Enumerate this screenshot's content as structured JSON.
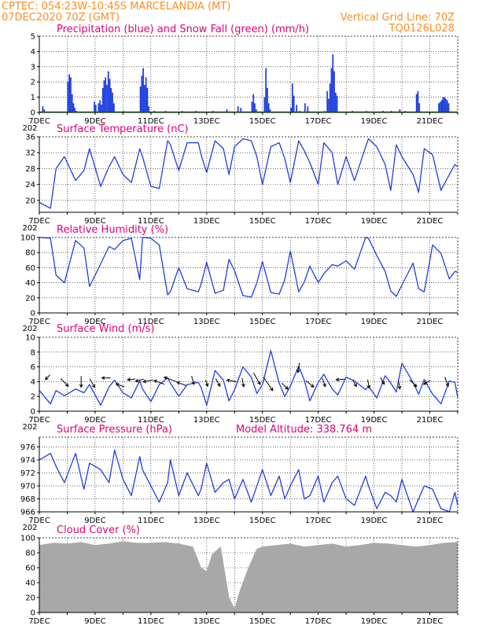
{
  "header": {
    "station": "CPTEC:   054:23W-10:45S   MARCELANDIA (MT)",
    "run": "07DEC2020 70Z (GMT)",
    "grid_note": "Vertical Grid Line: 70Z",
    "code": "TQ0126L028"
  },
  "x_axis": {
    "date_labels": [
      "7DEC",
      "9DEC",
      "11DEC",
      "13DEC",
      "15DEC",
      "17DEC",
      "19DEC",
      "21DEC"
    ],
    "date_days": [
      0,
      2,
      4,
      6,
      8,
      10,
      12,
      14
    ],
    "start_label_prefix": "202",
    "span_days": 15
  },
  "colors": {
    "header": "#ff8c1a",
    "panel_title": "#e0007a",
    "line": "#1f3fe0",
    "precip": "#1f3fe0",
    "snow": "#00a000",
    "cloud": "#a8a8a8",
    "arrow": "#000000"
  },
  "chart_data": [
    {
      "id": "precip",
      "type": "bar",
      "title": "Precipitation (blue) and Snow Fall (green) (mm/h)",
      "ylim": [
        0,
        5
      ],
      "yticks": [
        0,
        1,
        2,
        3,
        4,
        5
      ],
      "series": [
        {
          "name": "Precipitation",
          "x": [
            0.1,
            0.15,
            1.0,
            1.05,
            1.1,
            1.15,
            1.2,
            1.25,
            1.3,
            1.95,
            2.0,
            2.1,
            2.15,
            2.2,
            2.25,
            2.3,
            2.35,
            2.4,
            2.45,
            2.5,
            2.55,
            2.6,
            2.65,
            3.0,
            3.6,
            3.65,
            3.7,
            3.75,
            3.8,
            3.85,
            3.9,
            4.1,
            4.5,
            5.1,
            5.6,
            6.2,
            6.7,
            7.1,
            7.2,
            7.6,
            7.65,
            7.7,
            7.75,
            8.05,
            8.1,
            8.15,
            8.2,
            8.25,
            9.0,
            9.05,
            9.1,
            9.2,
            9.3,
            9.5,
            9.6,
            10.2,
            10.3,
            10.35,
            10.4,
            10.45,
            10.5,
            10.55,
            10.6,
            10.65,
            11.2,
            11.7,
            12.3,
            12.6,
            12.9,
            13.1,
            13.5,
            13.55,
            13.6,
            14.3,
            14.35,
            14.4,
            14.45,
            14.5,
            14.55,
            14.6,
            14.65
          ],
          "values": [
            0.4,
            0.2,
            2.0,
            2.5,
            2.3,
            1.2,
            0.6,
            0.3,
            0.1,
            0.7,
            0.5,
            0.6,
            0.8,
            0.5,
            1.6,
            2.1,
            2.3,
            1.8,
            2.7,
            2.2,
            1.6,
            1.3,
            0.6,
            0.1,
            1.7,
            2.4,
            2.9,
            1.8,
            2.3,
            1.6,
            0.4,
            0.1,
            0.1,
            0.1,
            0.1,
            0.1,
            0.2,
            0.4,
            0.3,
            0.7,
            1.2,
            0.6,
            0.2,
            1.0,
            2.9,
            1.6,
            0.6,
            0.2,
            0.3,
            1.9,
            1.1,
            0.5,
            0.1,
            0.6,
            0.4,
            0.1,
            1.4,
            0.9,
            1.9,
            2.9,
            3.8,
            2.7,
            1.3,
            1.1,
            0.1,
            0.1,
            0.1,
            0.1,
            0.2,
            0.1,
            1.2,
            1.4,
            0.6,
            0.6,
            0.7,
            0.8,
            1.0,
            1.0,
            0.9,
            0.8,
            0.6
          ]
        },
        {
          "name": "Snow Fall",
          "x": [],
          "values": []
        }
      ]
    },
    {
      "id": "temperature",
      "type": "line",
      "title": "Surface Temperature (nC)",
      "ylim": [
        17,
        36
      ],
      "yticks": [
        20,
        24,
        28,
        32,
        36
      ],
      "x": [
        0.0,
        0.4,
        0.6,
        0.9,
        1.3,
        1.6,
        1.8,
        2.2,
        2.5,
        2.7,
        3.0,
        3.3,
        3.6,
        3.7,
        4.0,
        4.3,
        4.6,
        4.7,
        5.0,
        5.3,
        5.7,
        5.8,
        6.0,
        6.3,
        6.6,
        6.8,
        7.0,
        7.3,
        7.6,
        7.8,
        8.0,
        8.3,
        8.6,
        8.8,
        9.0,
        9.3,
        9.5,
        9.7,
        10.0,
        10.2,
        10.5,
        10.7,
        11.0,
        11.3,
        11.7,
        11.8,
        12.1,
        12.4,
        12.6,
        12.8,
        13.0,
        13.4,
        13.6,
        13.8,
        14.1,
        14.4,
        14.7,
        14.9,
        15.0
      ],
      "values": [
        19.5,
        18.0,
        28.0,
        31.0,
        25.0,
        27.5,
        33.0,
        23.5,
        28.5,
        31.0,
        26.5,
        24.5,
        33.0,
        31.0,
        23.5,
        23.0,
        35.0,
        34.0,
        27.5,
        34.5,
        34.5,
        31.5,
        27.0,
        35.0,
        33.0,
        26.5,
        33.5,
        35.5,
        35.0,
        31.0,
        24.0,
        33.5,
        34.5,
        30.5,
        24.5,
        35.0,
        32.5,
        29.5,
        24.0,
        34.5,
        32.0,
        24.0,
        31.0,
        25.0,
        33.5,
        35.5,
        33.5,
        29.0,
        22.5,
        34.0,
        31.0,
        26.5,
        22.0,
        33.0,
        31.5,
        22.5,
        26.5,
        29.0,
        28.5
      ]
    },
    {
      "id": "humidity",
      "type": "line",
      "title": "Relative Humidity (%)",
      "ylim": [
        0,
        100
      ],
      "yticks": [
        0,
        20,
        40,
        60,
        80,
        100
      ],
      "x": [
        0.0,
        0.4,
        0.6,
        0.9,
        1.3,
        1.6,
        1.8,
        2.2,
        2.5,
        2.7,
        3.0,
        3.3,
        3.6,
        3.7,
        4.0,
        4.3,
        4.6,
        4.7,
        5.0,
        5.3,
        5.7,
        5.8,
        6.0,
        6.3,
        6.6,
        6.8,
        7.0,
        7.3,
        7.6,
        7.8,
        8.0,
        8.3,
        8.6,
        8.8,
        9.0,
        9.3,
        9.5,
        9.7,
        10.0,
        10.2,
        10.5,
        10.7,
        11.0,
        11.3,
        11.7,
        11.8,
        12.1,
        12.4,
        12.6,
        12.8,
        13.0,
        13.4,
        13.6,
        13.8,
        14.1,
        14.4,
        14.7,
        14.9,
        15.0
      ],
      "values": [
        100,
        99,
        50,
        40,
        96,
        86,
        35,
        65,
        88,
        84,
        96,
        99,
        44,
        100,
        99,
        90,
        24,
        28,
        60,
        32,
        28,
        38,
        67,
        26,
        30,
        71,
        56,
        23,
        21,
        40,
        68,
        27,
        25,
        44,
        82,
        28,
        41,
        62,
        40,
        52,
        64,
        62,
        69,
        58,
        100,
        99,
        76,
        55,
        29,
        22,
        37,
        66,
        32,
        28,
        90,
        79,
        45,
        55,
        54
      ]
    },
    {
      "id": "wind",
      "type": "line",
      "title": "Surface Wind (m/s)",
      "ylim": [
        0,
        10
      ],
      "yticks": [
        0,
        2,
        4,
        6,
        8,
        10
      ],
      "x": [
        0.0,
        0.4,
        0.6,
        0.9,
        1.3,
        1.6,
        1.8,
        2.2,
        2.5,
        2.7,
        3.0,
        3.3,
        3.6,
        3.7,
        4.0,
        4.3,
        4.6,
        4.7,
        5.0,
        5.3,
        5.7,
        5.8,
        6.0,
        6.3,
        6.6,
        6.8,
        7.0,
        7.3,
        7.6,
        7.8,
        8.0,
        8.3,
        8.6,
        8.8,
        9.0,
        9.3,
        9.5,
        9.7,
        10.0,
        10.2,
        10.5,
        10.7,
        11.0,
        11.3,
        11.7,
        11.8,
        12.1,
        12.4,
        12.6,
        12.8,
        13.0,
        13.4,
        13.6,
        13.8,
        14.1,
        14.4,
        14.7,
        14.9,
        15.0
      ],
      "values": [
        2.8,
        1.0,
        2.8,
        2.1,
        3.0,
        2.5,
        3.6,
        0.8,
        3.3,
        4.2,
        2.5,
        1.8,
        4.1,
        3.0,
        1.3,
        3.6,
        4.5,
        3.8,
        2.0,
        3.6,
        3.9,
        3.2,
        0.8,
        5.5,
        4.2,
        1.4,
        2.9,
        6.0,
        4.6,
        2.4,
        3.6,
        8.2,
        3.8,
        2.0,
        3.4,
        6.1,
        4.2,
        1.4,
        3.9,
        5.0,
        3.0,
        2.2,
        4.6,
        4.1,
        2.9,
        3.4,
        1.8,
        4.8,
        3.8,
        2.6,
        6.5,
        3.9,
        2.3,
        4.3,
        2.3,
        1.0,
        4.1,
        3.9,
        1.9
      ],
      "arrows": {
        "day": [
          0.3,
          0.9,
          1.5,
          1.9,
          2.4,
          2.9,
          3.3,
          3.6,
          3.9,
          4.3,
          4.7,
          5.1,
          5.5,
          6.0,
          6.4,
          6.9,
          7.3,
          7.8,
          8.2,
          8.8,
          9.3,
          9.7,
          10.2,
          10.8,
          11.3,
          11.8,
          12.3,
          12.9,
          13.4,
          13.9,
          14.6
        ],
        "level": [
          4.6,
          3.9,
          4.0,
          3.8,
          4.5,
          3.5,
          4.3,
          4.2,
          4.1,
          3.9,
          4.3,
          3.7,
          4.2,
          3.8,
          3.9,
          4.1,
          3.9,
          4.4,
          3.7,
          3.4,
          5.9,
          3.7,
          3.9,
          4.3,
          3.8,
          3.7,
          4.1,
          3.6,
          3.8,
          3.9,
          4.0
        ],
        "dir": [
          135,
          45,
          90,
          60,
          180,
          200,
          175,
          165,
          170,
          200,
          200,
          200,
          75,
          70,
          60,
          190,
          80,
          60,
          55,
          45,
          100,
          40,
          70,
          175,
          60,
          80,
          60,
          80,
          45,
          150,
          70
        ],
        "len": [
          0.6,
          1.0,
          1.0,
          0.9,
          0.8,
          0.8,
          0.7,
          0.8,
          0.9,
          1.0,
          1.2,
          0.9,
          0.8,
          0.6,
          0.8,
          0.9,
          0.8,
          1.2,
          1.5,
          0.8,
          0.9,
          0.9,
          0.8,
          0.8,
          0.7,
          0.8,
          0.7,
          0.8,
          0.9,
          0.7,
          0.9
        ]
      }
    },
    {
      "id": "pressure",
      "type": "line",
      "title": "Surface Pressure (hPa)",
      "subtitle": "Model Altitude: 338.764 m",
      "ylim": [
        966,
        977.5
      ],
      "yticks": [
        966,
        968,
        970,
        972,
        974,
        976
      ],
      "x": [
        0.0,
        0.4,
        0.6,
        0.9,
        1.3,
        1.6,
        1.8,
        2.2,
        2.5,
        2.7,
        3.0,
        3.3,
        3.6,
        3.7,
        4.0,
        4.3,
        4.6,
        4.7,
        5.0,
        5.3,
        5.7,
        5.8,
        6.0,
        6.3,
        6.6,
        6.8,
        7.0,
        7.3,
        7.6,
        7.8,
        8.0,
        8.3,
        8.6,
        8.8,
        9.0,
        9.3,
        9.5,
        9.7,
        10.0,
        10.2,
        10.5,
        10.7,
        11.0,
        11.3,
        11.7,
        11.8,
        12.1,
        12.4,
        12.6,
        12.8,
        13.0,
        13.4,
        13.6,
        13.8,
        14.1,
        14.4,
        14.7,
        14.9,
        15.0
      ],
      "values": [
        974.0,
        975.0,
        973.0,
        970.5,
        975.0,
        969.5,
        973.5,
        972.5,
        970.5,
        975.5,
        971.0,
        968.5,
        974.5,
        972.5,
        970.0,
        967.5,
        970.5,
        974.0,
        968.5,
        972.0,
        968.5,
        969.5,
        973.5,
        969.0,
        970.5,
        971.0,
        968.0,
        971.0,
        967.5,
        970.0,
        972.5,
        968.5,
        971.5,
        968.0,
        970.0,
        972.5,
        968.0,
        968.5,
        971.5,
        967.5,
        970.5,
        971.5,
        968.0,
        967.0,
        971.5,
        970.0,
        966.5,
        969.0,
        968.5,
        967.5,
        971.0,
        966.0,
        968.0,
        970.0,
        969.5,
        966.5,
        966.0,
        969.0,
        967.0
      ]
    },
    {
      "id": "cloud",
      "type": "bar",
      "title": "Cloud Cover (%)",
      "ylim": [
        0,
        100
      ],
      "yticks": [
        0,
        20,
        40,
        60,
        80,
        100
      ],
      "x": [
        0.0,
        0.5,
        1.0,
        1.5,
        2.0,
        2.5,
        3.0,
        3.5,
        4.0,
        4.5,
        5.0,
        5.5,
        5.8,
        6.0,
        6.2,
        6.5,
        6.8,
        7.0,
        7.2,
        7.5,
        7.8,
        8.0,
        8.5,
        9.0,
        9.5,
        10.0,
        10.5,
        11.0,
        11.5,
        12.0,
        12.5,
        13.0,
        13.5,
        14.0,
        14.5,
        15.0
      ],
      "values": [
        90,
        93,
        92,
        94,
        90,
        92,
        95,
        93,
        93,
        94,
        92,
        88,
        60,
        55,
        78,
        88,
        20,
        5,
        30,
        60,
        85,
        88,
        90,
        92,
        88,
        90,
        92,
        88,
        90,
        93,
        92,
        90,
        88,
        90,
        93,
        94
      ]
    }
  ]
}
